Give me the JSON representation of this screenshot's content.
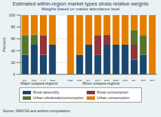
{
  "chart_data": {
    "type": "bar",
    "title": "Estimated within-region market types strata relative weights",
    "subtitle": "Weights based on market attendance level",
    "y_label": "Percent",
    "annotations": [
      "Major cowpea regions",
      "Minor cowpea regions",
      "Source: SIMICSA and authors computations"
    ],
    "categories": [
      "DL",
      "FK",
      "LG",
      "TH",
      null,
      "DK",
      "KF",
      "KL",
      "KG",
      "KD",
      "MT",
      "SD",
      "SL",
      "TC",
      "ZG"
    ],
    "series": [
      {
        "name": "Rural assembly",
        "color": "#1a476f",
        "values": [
          33,
          50,
          33,
          50,
          null,
          0,
          33,
          50,
          33,
          50,
          50,
          50,
          25,
          33,
          0
        ]
      },
      {
        "name": "Rural consumption",
        "color": "#90353b",
        "values": [
          0,
          0,
          33,
          0,
          null,
          0,
          0,
          0,
          33,
          17,
          0,
          0,
          25,
          0,
          0
        ]
      },
      {
        "name": "Urban wholesale/consumption",
        "color": "#55752f",
        "values": [
          33,
          17,
          0,
          0,
          null,
          0,
          0,
          0,
          0,
          0,
          0,
          0,
          25,
          33,
          0
        ]
      },
      {
        "name": "Urban consumption",
        "color": "#e37e00",
        "values": [
          34,
          33,
          34,
          50,
          null,
          100,
          67,
          50,
          34,
          33,
          50,
          50,
          25,
          34,
          100
        ]
      }
    ],
    "ylim": [
      0,
      100
    ],
    "yticks": [
      0,
      20,
      40,
      60,
      80,
      100
    ],
    "grid": true,
    "stacked": true,
    "legend": "bottom"
  }
}
